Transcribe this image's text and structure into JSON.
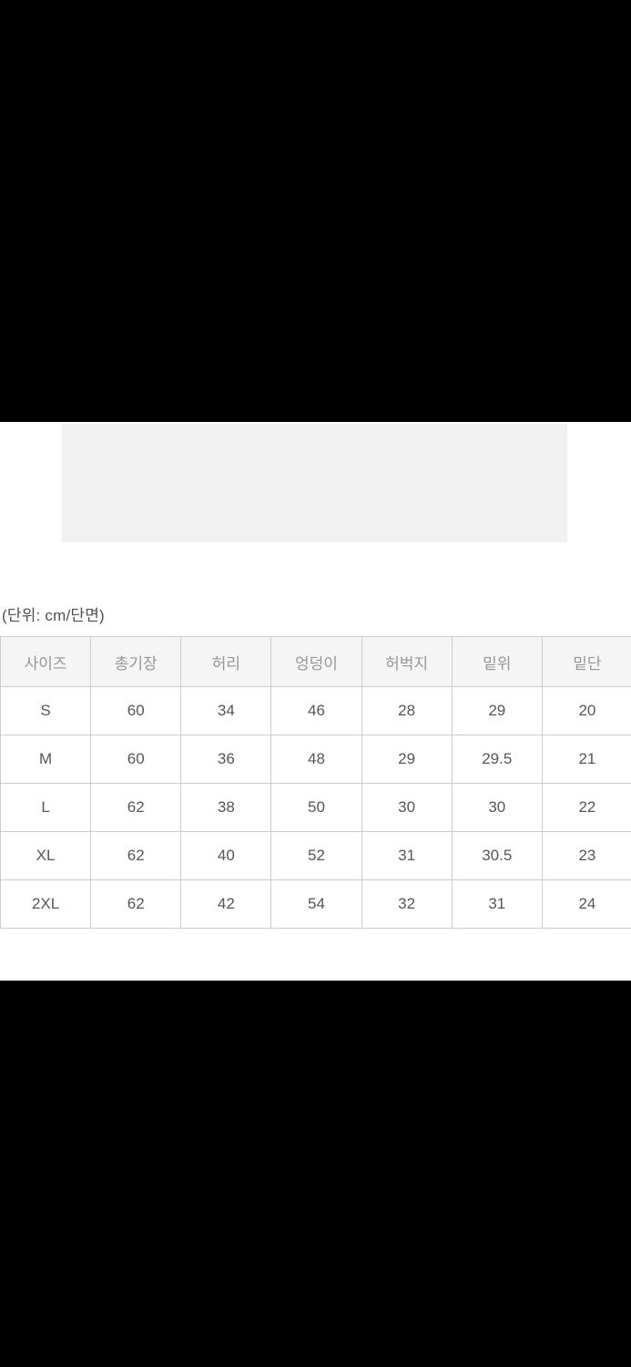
{
  "page": {
    "unit_caption": "(단위: cm/단면)"
  },
  "size_table": {
    "columns": [
      "사이즈",
      "총기장",
      "허리",
      "엉덩이",
      "허벅지",
      "밑위",
      "밑단"
    ],
    "rows": [
      {
        "size": "S",
        "values": [
          "60",
          "34",
          "46",
          "28",
          "29",
          "20"
        ]
      },
      {
        "size": "M",
        "values": [
          "60",
          "36",
          "48",
          "29",
          "29.5",
          "21"
        ]
      },
      {
        "size": "L",
        "values": [
          "62",
          "38",
          "50",
          "30",
          "30",
          "22"
        ]
      },
      {
        "size": "XL",
        "values": [
          "62",
          "40",
          "52",
          "31",
          "30.5",
          "23"
        ]
      },
      {
        "size": "2XL",
        "values": [
          "62",
          "42",
          "54",
          "32",
          "31",
          "24"
        ]
      }
    ]
  },
  "colors": {
    "page_background": "#ffffff",
    "letterbox_black": "#000000",
    "image_placeholder_gray": "#f1f1f1",
    "table_border": "#cccccc",
    "header_background": "#f5f5f5",
    "header_text": "#979797",
    "body_text": "#565656",
    "caption_text": "#4f4f4f"
  }
}
